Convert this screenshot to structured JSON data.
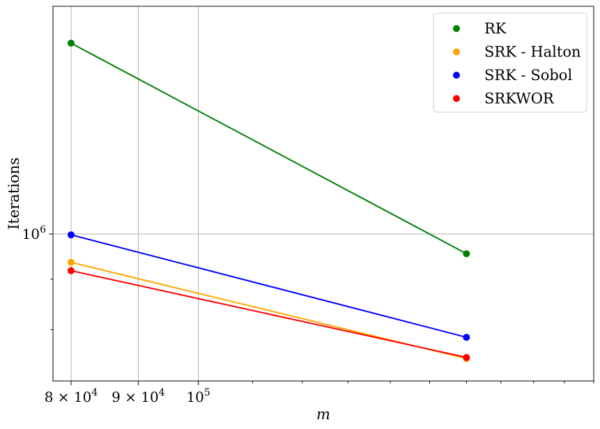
{
  "chart_data": {
    "type": "line",
    "xscale": "log",
    "yscale": "log",
    "xlabel": "m",
    "ylabel": "Iterations",
    "xlim": [
      77500,
      200000
    ],
    "ylim": [
      710000,
      1700000
    ],
    "grid": true,
    "legend_position": "top-right",
    "x_ticks": [
      {
        "value": 80000,
        "mantissa": "8",
        "exponent": "4"
      },
      {
        "value": 90000,
        "mantissa": "9",
        "exponent": "4"
      },
      {
        "value": 100000,
        "mantissa": "",
        "exponent": "5"
      }
    ],
    "x_minor_ticks": [
      110000,
      120000,
      130000,
      140000,
      150000,
      160000,
      170000,
      180000,
      190000,
      200000
    ],
    "y_ticks": [
      {
        "value": 1000000,
        "mantissa": "",
        "exponent": "6"
      }
    ],
    "y_minor_ticks": [
      800000,
      900000
    ],
    "x": [
      80000,
      160000
    ],
    "series": [
      {
        "name": "RK",
        "color": "#008000",
        "values": [
          1560000,
          955000
        ]
      },
      {
        "name": "SRK - Halton",
        "color": "#FFA500",
        "values": [
          936000,
          748000
        ]
      },
      {
        "name": "SRK - Sobol",
        "color": "#0000FF",
        "values": [
          998000,
          786000
        ]
      },
      {
        "name": "SRKWOR",
        "color": "#FF0000",
        "values": [
          918000,
          750000
        ]
      }
    ]
  }
}
